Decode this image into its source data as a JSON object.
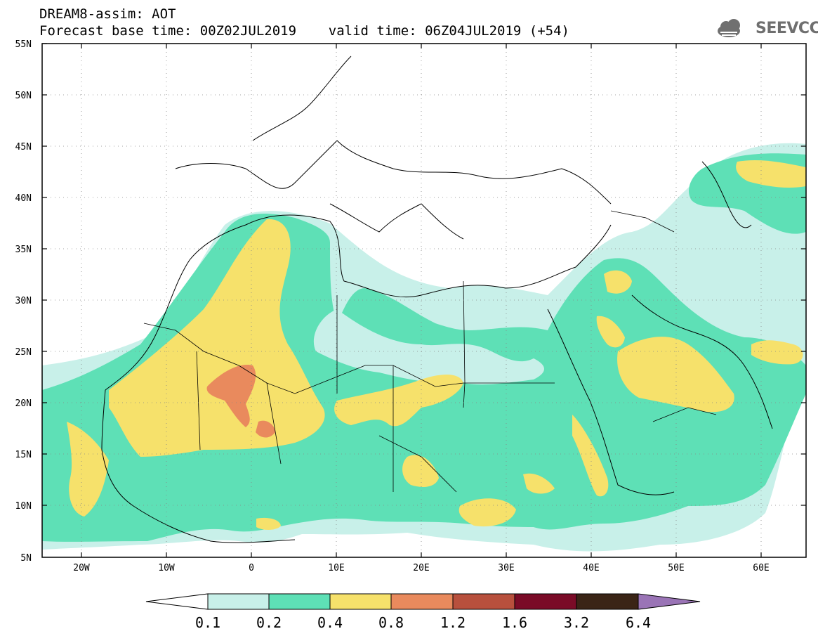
{
  "header": {
    "line1": "DREAM8-assim: AOT",
    "line2": "Forecast base time: 00Z02JUL2019    valid time: 06Z04JUL2019 (+54)"
  },
  "logo": {
    "text": "SEEVCCC",
    "icon": "cloud-icon"
  },
  "map": {
    "lat_labels": [
      "55N",
      "50N",
      "45N",
      "40N",
      "35N",
      "30N",
      "25N",
      "20N",
      "15N",
      "10N",
      "5N"
    ],
    "lon_labels": [
      "20W",
      "10W",
      "0",
      "10E",
      "20E",
      "30E",
      "40E",
      "50E",
      "60E"
    ],
    "lat_range": [
      5,
      55
    ],
    "lon_range": [
      -25,
      65
    ],
    "grid": "dotted",
    "variable": "AOT"
  },
  "colorbar": {
    "ticks": [
      "0.1",
      "0.2",
      "0.4",
      "0.8",
      "1.2",
      "1.6",
      "3.2",
      "6.4"
    ],
    "colors": [
      "#ffffff",
      "#c8f0e9",
      "#5ee0b6",
      "#f6e16b",
      "#e98a5d",
      "#b8503d",
      "#7a0b27",
      "#3a2416",
      "#9a74b6"
    ]
  },
  "palette": {
    "ocean_land": "#ffffff",
    "coast": "#000000",
    "border": "#000000"
  }
}
